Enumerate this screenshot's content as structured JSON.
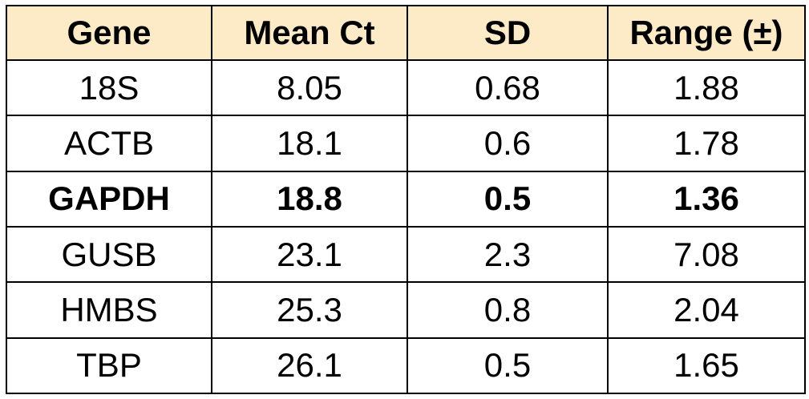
{
  "chart_data": {
    "type": "table",
    "columns": [
      "Gene",
      "Mean Ct",
      "SD",
      "Range (±)"
    ],
    "rows": [
      {
        "gene": "18S",
        "mean_ct": "8.05",
        "sd": "0.68",
        "range": "1.88",
        "bold": false
      },
      {
        "gene": "ACTB",
        "mean_ct": "18.1",
        "sd": "0.6",
        "range": "1.78",
        "bold": false
      },
      {
        "gene": "GAPDH",
        "mean_ct": "18.8",
        "sd": "0.5",
        "range": "1.36",
        "bold": true
      },
      {
        "gene": "GUSB",
        "mean_ct": "23.1",
        "sd": "2.3",
        "range": "7.08",
        "bold": false
      },
      {
        "gene": "HMBS",
        "mean_ct": "25.3",
        "sd": "0.8",
        "range": "2.04",
        "bold": false
      },
      {
        "gene": "TBP",
        "mean_ct": "26.1",
        "sd": "0.5",
        "range": "1.65",
        "bold": false
      }
    ],
    "header_color": "#fdebc8",
    "border_color": "#000000"
  }
}
